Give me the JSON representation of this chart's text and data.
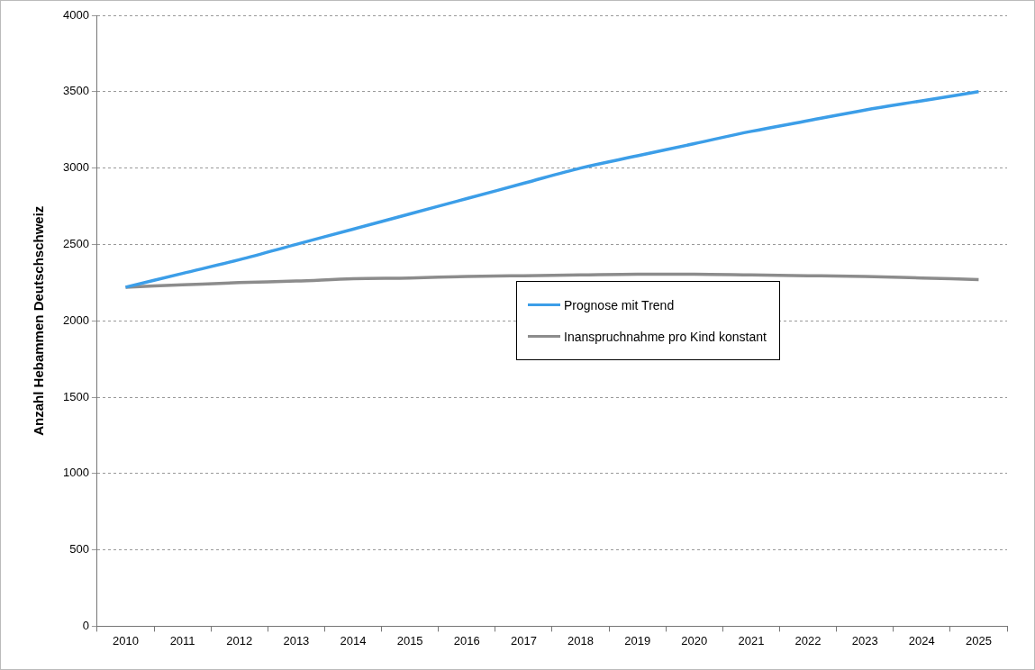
{
  "chart_data": {
    "type": "line",
    "ylabel": "Anzahl Hebammen Deutschschweiz",
    "categories": [
      "2010",
      "2011",
      "2012",
      "2013",
      "2014",
      "2015",
      "2016",
      "2017",
      "2018",
      "2019",
      "2020",
      "2021",
      "2022",
      "2023",
      "2024",
      "2025"
    ],
    "series": [
      {
        "name": "Prognose mit Trend",
        "color": "#3c9ee8",
        "values": [
          2220,
          2310,
          2400,
          2500,
          2600,
          2700,
          2800,
          2900,
          3000,
          3080,
          3160,
          3240,
          3310,
          3380,
          3440,
          3500
        ]
      },
      {
        "name": "Inanspruchnahme pro Kind konstant",
        "color": "#8c8c8c",
        "values": [
          2220,
          2235,
          2250,
          2260,
          2275,
          2280,
          2290,
          2295,
          2300,
          2305,
          2305,
          2300,
          2295,
          2290,
          2280,
          2270
        ]
      }
    ],
    "ylim": [
      0,
      4000
    ],
    "yticks": [
      0,
      500,
      1000,
      1500,
      2000,
      2500,
      3000,
      3500,
      4000
    ],
    "grid": "y",
    "legend": "center right",
    "marker": "none",
    "line_style": "solid"
  }
}
